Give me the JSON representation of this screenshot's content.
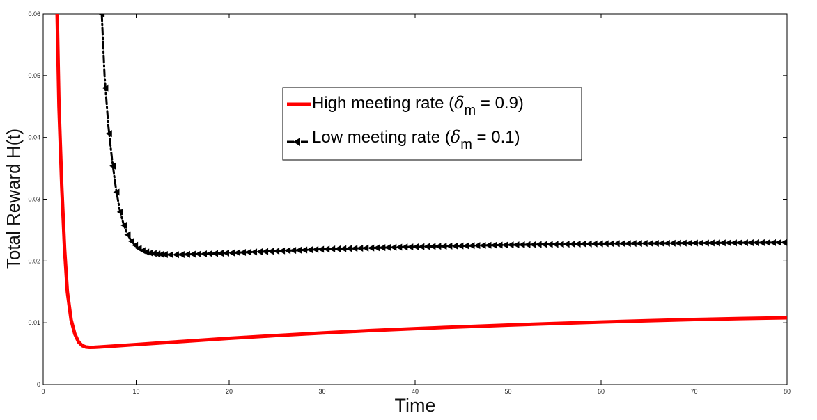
{
  "chart_data": {
    "type": "line",
    "title": "",
    "xlabel": "Time",
    "ylabel": "Total Reward  H(t)",
    "xlim": [
      0,
      80
    ],
    "ylim": [
      0,
      0.06
    ],
    "xticks": [
      0,
      10,
      20,
      30,
      40,
      50,
      60,
      70,
      80
    ],
    "xtick_labels": [
      "0",
      "10",
      "20",
      "30",
      "40",
      "50",
      "60",
      "70",
      "80"
    ],
    "yticks": [
      0,
      0.01,
      0.02,
      0.03,
      0.04,
      0.05,
      0.06
    ],
    "ytick_labels": [
      "0",
      "0.01",
      "0.02",
      "0.03",
      "0.04",
      "0.05",
      "0.06"
    ],
    "grid": false,
    "legend_position": "top-center",
    "series": [
      {
        "name": "High meeting rate",
        "legend_prefix": "High meeting rate (",
        "legend_symbol": "δ",
        "legend_subscript": "m",
        "legend_suffix": " = 0.9)",
        "color": "#ff0000",
        "style": "solid",
        "marker": "none",
        "x": [
          1.5,
          1.7,
          2.0,
          2.3,
          2.6,
          3.0,
          3.4,
          3.8,
          4.2,
          4.6,
          5.0,
          5.5,
          6.0,
          7.0,
          8.0,
          10,
          12,
          15,
          20,
          25,
          30,
          35,
          40,
          45,
          50,
          55,
          60,
          65,
          70,
          75,
          80
        ],
        "values": [
          0.06,
          0.045,
          0.032,
          0.022,
          0.015,
          0.0105,
          0.0082,
          0.0069,
          0.0063,
          0.00608,
          0.00602,
          0.00604,
          0.00608,
          0.00618,
          0.00628,
          0.00648,
          0.00668,
          0.00698,
          0.00748,
          0.00793,
          0.00835,
          0.00872,
          0.00905,
          0.00935,
          0.00962,
          0.00988,
          0.01012,
          0.01033,
          0.01052,
          0.01068,
          0.0108
        ]
      },
      {
        "name": "Low meeting rate",
        "legend_prefix": "Low meeting rate (",
        "legend_symbol": "δ",
        "legend_subscript": "m",
        "legend_suffix": " = 0.1)",
        "color": "#000000",
        "style": "dashdot",
        "marker": "left-triangle",
        "x": [
          6.3,
          6.6,
          7.0,
          7.4,
          7.8,
          8.2,
          8.6,
          9.0,
          9.5,
          10.0,
          10.5,
          11.0,
          11.5,
          12.0,
          12.5,
          13.0,
          14.0,
          15.0,
          16.0,
          18.0,
          20.0,
          25.0,
          30.0,
          35.0,
          40.0,
          50.0,
          60.0,
          70.0,
          80.0
        ],
        "values": [
          0.06,
          0.05,
          0.042,
          0.0365,
          0.032,
          0.0285,
          0.0262,
          0.0245,
          0.0232,
          0.0224,
          0.0218,
          0.0215,
          0.0213,
          0.0212,
          0.0211,
          0.02105,
          0.02102,
          0.02105,
          0.0211,
          0.0212,
          0.0213,
          0.0216,
          0.0219,
          0.0221,
          0.0223,
          0.0226,
          0.0228,
          0.0229,
          0.023
        ]
      }
    ]
  }
}
